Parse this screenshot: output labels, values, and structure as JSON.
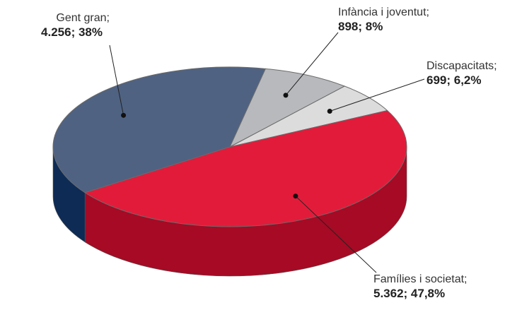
{
  "chart_data": {
    "type": "pie",
    "categories": [
      "Gent gran;",
      "Infància i joventut;",
      "Discapacitats;",
      "Famílies i societat;"
    ],
    "values": [
      4256,
      898,
      699,
      5362
    ],
    "value_labels": [
      "4.256; 38%",
      "898; 8%",
      "699; 6,2%",
      "5.362; 47,8%"
    ],
    "colors": [
      "#4f6282",
      "#b8b9bc",
      "#dcdcdd",
      "#e31b3a"
    ],
    "side_colors": [
      "#0d2b55",
      "#8e8f92",
      "#a9a9ab",
      "#a60a24"
    ]
  }
}
